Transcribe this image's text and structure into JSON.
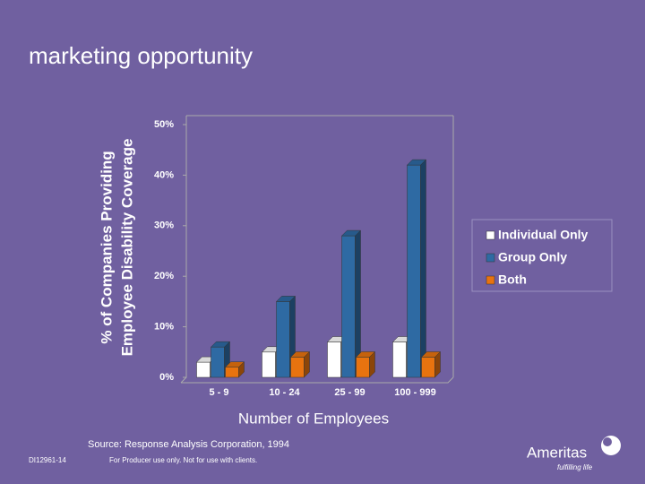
{
  "chart_data": {
    "type": "bar3d",
    "title": "marketing opportunity",
    "y_label": [
      "% of Companies Providing",
      "Employee Disability Coverage"
    ],
    "x_label": "Number of Employees",
    "source": "Source: Response Analysis Corporation, 1994",
    "footer_code": "DI12961-14",
    "footer_note": "For Producer use only. Not for use with clients.",
    "logo": {
      "name": "Ameritas",
      "tagline": "fulfilling life"
    },
    "categories": [
      "5 - 9",
      "10 - 24",
      "25 - 99",
      "100 - 999"
    ],
    "series": [
      {
        "name": "Individual Only",
        "color": "#ffffff",
        "values": [
          3,
          5,
          7,
          7
        ]
      },
      {
        "name": "Group Only",
        "color": "#2e6aa3",
        "values": [
          6,
          15,
          28,
          42
        ]
      },
      {
        "name": "Both",
        "color": "#e8730f",
        "values": [
          2,
          4,
          4,
          4
        ]
      }
    ],
    "ylim": [
      0,
      50
    ],
    "yticks": [
      {
        "value": 0,
        "label": "0%"
      },
      {
        "value": 10,
        "label": "10%"
      },
      {
        "value": 20,
        "label": "20%"
      },
      {
        "value": 30,
        "label": "30%"
      },
      {
        "value": 40,
        "label": "40%"
      },
      {
        "value": 50,
        "label": "50%"
      }
    ],
    "legend": "right"
  }
}
